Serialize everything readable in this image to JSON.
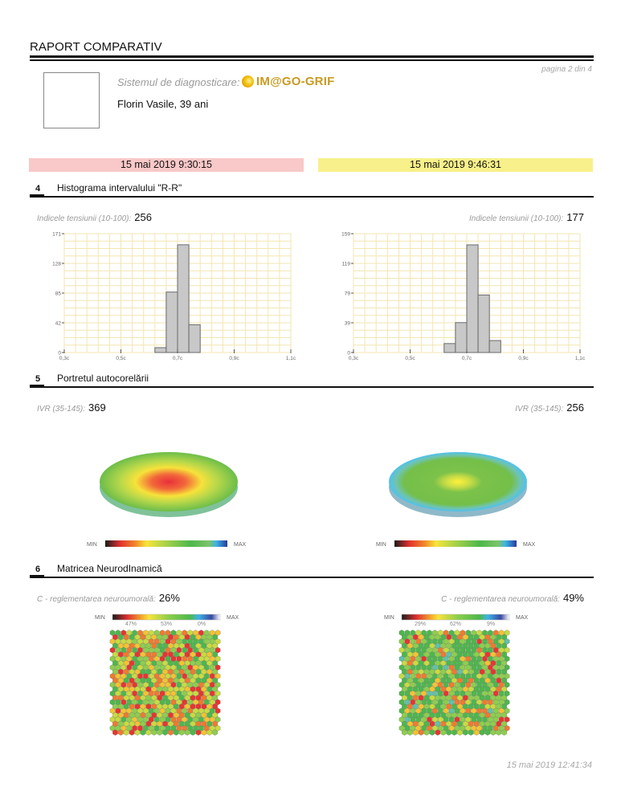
{
  "header": {
    "title": "RAPORT COMPARATIV",
    "page": "pagina 2 din 4",
    "system_label": "Sistemul de diagnosticare:",
    "system_name": "IM@GO-GRIF",
    "system_icon": "sun-logo-icon",
    "patient": "Florin Vasile, 39 ani"
  },
  "sessions": [
    {
      "date": "15 mai 2019 9:30:15",
      "color": "#f9c8c8"
    },
    {
      "date": "15 mai 2019 9:46:31",
      "color": "#f8f08a"
    }
  ],
  "sections": [
    {
      "number": "4",
      "title": "Histograma intervalului \"R-R\"",
      "metric_label": "Indicele tensiunii (10-100):",
      "values": [
        "256",
        "177"
      ]
    },
    {
      "number": "5",
      "title": "Portretul autocorelării",
      "metric_label": "IVR (35-145):",
      "values": [
        "369",
        "256"
      ],
      "colorbar": {
        "min": "MIN",
        "max": "MAX"
      }
    },
    {
      "number": "6",
      "title": "Matricea NeurodInamică",
      "metric_label": "C - reglementarea neuroumorală:",
      "values": [
        "26%",
        "49%"
      ],
      "colorbar": {
        "min": "MIN",
        "max": "MAX"
      },
      "percentages": [
        [
          "47%",
          "53%",
          "0%"
        ],
        [
          "29%",
          "62%",
          "9%"
        ]
      ]
    }
  ],
  "chart_data": [
    {
      "type": "bar",
      "title": "Histograma intervalului R-R (15 mai 2019 9:30:15)",
      "xlabel": "",
      "ylabel": "",
      "xlim": [
        0.3,
        1.1
      ],
      "x_ticks": [
        "0,3c",
        "0,5c",
        "0,7c",
        "0,9c",
        "1,1c"
      ],
      "x_tick_values": [
        0.3,
        0.5,
        0.7,
        0.9,
        1.1
      ],
      "y_ticks": [
        "0",
        "42",
        "85",
        "128",
        "171"
      ],
      "ylim": [
        0,
        171
      ],
      "bin_width": 0.04,
      "bins": [
        {
          "from": 0.62,
          "to": 0.66,
          "value": 7
        },
        {
          "from": 0.66,
          "to": 0.7,
          "value": 87
        },
        {
          "from": 0.7,
          "to": 0.74,
          "value": 155
        },
        {
          "from": 0.74,
          "to": 0.78,
          "value": 40
        }
      ],
      "grid": true
    },
    {
      "type": "bar",
      "title": "Histograma intervalului R-R (15 mai 2019 9:46:31)",
      "xlabel": "",
      "ylabel": "",
      "xlim": [
        0.3,
        1.1
      ],
      "x_ticks": [
        "0,3c",
        "0,5c",
        "0,7c",
        "0,9c",
        "1,1c"
      ],
      "x_tick_values": [
        0.3,
        0.5,
        0.7,
        0.9,
        1.1
      ],
      "y_ticks": [
        "0",
        "39",
        "79",
        "119",
        "159"
      ],
      "ylim": [
        0,
        159
      ],
      "bin_width": 0.04,
      "bins": [
        {
          "from": 0.62,
          "to": 0.66,
          "value": 12
        },
        {
          "from": 0.66,
          "to": 0.7,
          "value": 40
        },
        {
          "from": 0.7,
          "to": 0.74,
          "value": 144
        },
        {
          "from": 0.74,
          "to": 0.78,
          "value": 77
        },
        {
          "from": 0.78,
          "to": 0.82,
          "value": 16
        }
      ],
      "grid": true
    }
  ],
  "colors": {
    "grid": "#f3e6b0",
    "bar_fill": "#c8c8c8",
    "bar_stroke": "#6a6a6a",
    "logo": "#c89a21"
  },
  "footer": {
    "timestamp": "15 mai 2019 12:41:34"
  }
}
